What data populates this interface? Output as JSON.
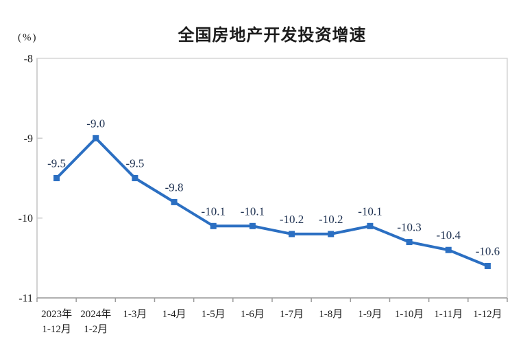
{
  "page": {
    "background_color": "#ffffff"
  },
  "chart_data": {
    "type": "line",
    "title": "全国房地产开发投资增速",
    "unit_label": "(%)",
    "categories": [
      [
        "2023年",
        "1-12月"
      ],
      [
        "2024年",
        "1-2月"
      ],
      [
        "1-3月"
      ],
      [
        "1-4月"
      ],
      [
        "1-5月"
      ],
      [
        "1-6月"
      ],
      [
        "1-7月"
      ],
      [
        "1-8月"
      ],
      [
        "1-9月"
      ],
      [
        "1-10月"
      ],
      [
        "1-11月"
      ],
      [
        "1-12月"
      ]
    ],
    "series": [
      {
        "name": "全国房地产开发投资增速",
        "values": [
          -9.5,
          -9.0,
          -9.5,
          -9.8,
          -10.1,
          -10.1,
          -10.2,
          -10.2,
          -10.1,
          -10.3,
          -10.4,
          -10.6
        ],
        "value_labels": [
          "-9.5",
          "-9.0",
          "-9.5",
          "-9.8",
          "-10.1",
          "-10.1",
          "-10.2",
          "-10.2",
          "-10.1",
          "-10.3",
          "-10.4",
          "-10.6"
        ]
      }
    ],
    "ylabel": "(%)",
    "xlabel": "",
    "ylim": [
      -11,
      -8
    ],
    "y_ticks": [
      -8,
      -9,
      -10,
      -11
    ],
    "y_tick_labels": [
      "-8",
      "-9",
      "-10",
      "-11"
    ],
    "grid": false,
    "legend": "none",
    "marker": "square",
    "colors": {
      "line": "#2b6fc2",
      "marker": "#2b6fc2",
      "data_label": "#1d3050",
      "axis_text": "#1c1c1c",
      "plot_border": "#d6d6d6",
      "left_axis": "#c9c9c9",
      "bottom_axis": "#9c9c9c"
    }
  }
}
